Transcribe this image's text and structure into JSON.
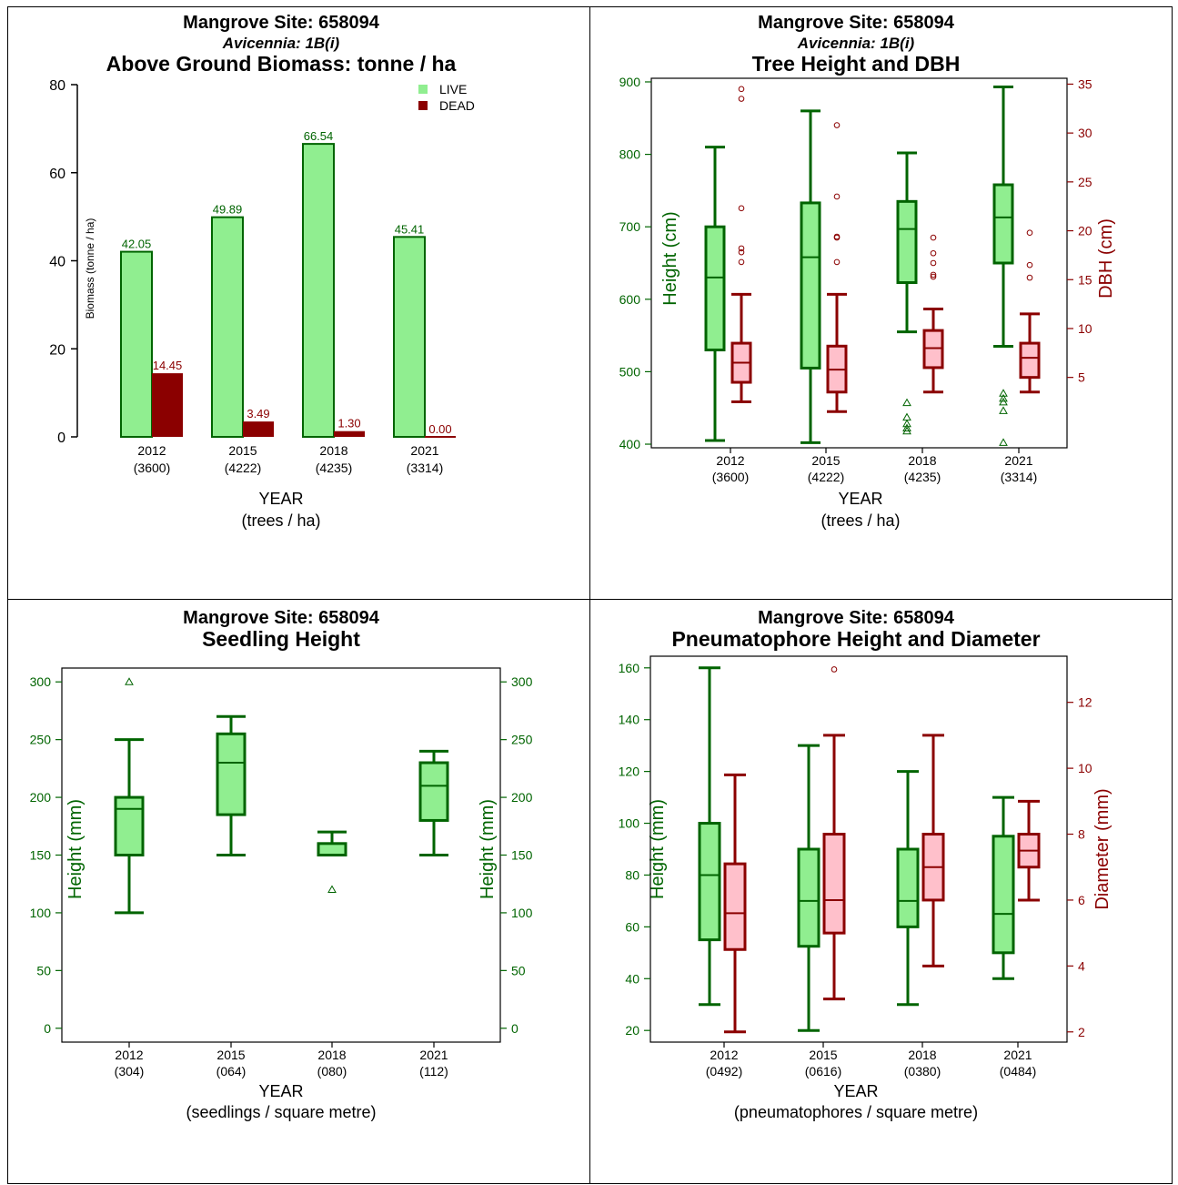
{
  "colors": {
    "live_fill": "#90EE90",
    "live_stroke": "#006400",
    "dead_fill": "#8B0000",
    "dbh_fill": "#FFC0CB",
    "dbh_stroke": "#8B0000",
    "text_green": "#006400",
    "text_red": "#8B0000"
  },
  "panels": {
    "biomass": {
      "title": "Mangrove Site: 658094",
      "subtitle": "Avicennia: 1B(i)",
      "heading": "Above Ground Biomass: tonne / ha",
      "ylabel": "Biomass (tonne / ha)",
      "xlabel": "YEAR",
      "xlabel2": "(trees / ha)",
      "legend": {
        "live": "LIVE",
        "dead": "DEAD"
      }
    },
    "tree": {
      "title": "Mangrove Site: 658094",
      "subtitle": "Avicennia: 1B(i)",
      "heading": "Tree Height and DBH",
      "ylabel_left": "Height (cm)",
      "ylabel_right": "DBH (cm)",
      "xlabel": "YEAR",
      "xlabel2": "(trees / ha)"
    },
    "seedling": {
      "title": "Mangrove Site: 658094",
      "heading": "Seedling Height",
      "ylabel_left": "Height (mm)",
      "ylabel_right": "Height (mm)",
      "xlabel": "YEAR",
      "xlabel2": "(seedlings / square metre)"
    },
    "pneu": {
      "title": "Mangrove Site: 658094",
      "heading": "Pneumatophore Height and Diameter",
      "ylabel_left": "Height (mm)",
      "ylabel_right": "Diameter (mm)",
      "xlabel": "YEAR",
      "xlabel2": "(pneumatophores / square metre)"
    }
  },
  "chart_data": [
    {
      "type": "bar",
      "id": "biomass",
      "categories": [
        "2012",
        "2015",
        "2018",
        "2021"
      ],
      "category_sublabels": [
        "(3600)",
        "(4222)",
        "(4235)",
        "(3314)"
      ],
      "series": [
        {
          "name": "LIVE",
          "values": [
            42.05,
            49.89,
            66.54,
            45.41
          ],
          "labels": [
            "42.05",
            "49.89",
            "66.54",
            "45.41"
          ]
        },
        {
          "name": "DEAD",
          "values": [
            14.45,
            3.49,
            1.3,
            0.0
          ],
          "labels": [
            "14.45",
            "3.49",
            "1.30",
            "0.00"
          ]
        }
      ],
      "ylim": [
        0,
        80
      ],
      "yticks": [
        0,
        20,
        40,
        60,
        80
      ],
      "legend": "top-right"
    },
    {
      "type": "box",
      "id": "tree",
      "categories": [
        "2012",
        "2015",
        "2018",
        "2021"
      ],
      "category_sublabels": [
        "(3600)",
        "(4222)",
        "(4235)",
        "(3314)"
      ],
      "left_axis": {
        "ylim": [
          395,
          905
        ],
        "yticks": [
          400,
          500,
          600,
          700,
          800,
          900
        ]
      },
      "right_axis": {
        "ylim": [
          -2.2,
          35.6
        ],
        "yticks": [
          5,
          10,
          15,
          20,
          25,
          30,
          35
        ]
      },
      "series": [
        {
          "name": "Height (cm)",
          "axis": "left",
          "outlier_marker": "triangle",
          "boxes": [
            {
              "whislo": 405,
              "q1": 530,
              "med": 630,
              "q3": 700,
              "whishi": 810,
              "outliers": []
            },
            {
              "whislo": 402,
              "q1": 505,
              "med": 658,
              "q3": 733,
              "whishi": 860,
              "outliers": []
            },
            {
              "whislo": 555,
              "q1": 623,
              "med": 697,
              "q3": 735,
              "whishi": 802,
              "outliers": [
                457,
                437,
                428,
                422,
                418
              ]
            },
            {
              "whislo": 535,
              "q1": 650,
              "med": 713,
              "q3": 758,
              "whishi": 893,
              "outliers": [
                470,
                463,
                458,
                446,
                402
              ]
            }
          ]
        },
        {
          "name": "DBH (cm)",
          "axis": "right",
          "outlier_marker": "circle",
          "boxes": [
            {
              "whislo": 2.5,
              "q1": 4.5,
              "med": 6.5,
              "q3": 8.5,
              "whishi": 13.5,
              "outliers": [
                16.8,
                17.8,
                18.2,
                22.3,
                33.5,
                34.5
              ]
            },
            {
              "whislo": 1.5,
              "q1": 3.5,
              "med": 5.8,
              "q3": 8.2,
              "whishi": 13.5,
              "outliers": [
                16.8,
                19.3,
                19.4,
                23.5,
                30.8
              ]
            },
            {
              "whislo": 3.5,
              "q1": 6.0,
              "med": 8.0,
              "q3": 9.8,
              "whishi": 12.0,
              "outliers": [
                15.3,
                15.5,
                16.7,
                17.7,
                19.3
              ]
            },
            {
              "whislo": 3.5,
              "q1": 5.0,
              "med": 7.0,
              "q3": 8.5,
              "whishi": 11.5,
              "outliers": [
                15.2,
                16.5,
                19.8
              ]
            }
          ]
        }
      ]
    },
    {
      "type": "box",
      "id": "seedling",
      "categories": [
        "2012",
        "2015",
        "2018",
        "2021"
      ],
      "category_sublabels": [
        "(304)",
        "(064)",
        "(080)",
        "(112)"
      ],
      "left_axis": {
        "ylim": [
          -12,
          312
        ],
        "yticks": [
          0,
          50,
          100,
          150,
          200,
          250,
          300
        ]
      },
      "right_axis": {
        "ylim": [
          -12,
          312
        ],
        "yticks": [
          0,
          50,
          100,
          150,
          200,
          250,
          300
        ]
      },
      "series": [
        {
          "name": "Height (mm)",
          "axis": "left",
          "outlier_marker": "triangle",
          "boxes": [
            {
              "whislo": 100,
              "q1": 150,
              "med": 190,
              "q3": 200,
              "whishi": 250,
              "outliers": [
                300
              ]
            },
            {
              "whislo": 150,
              "q1": 185,
              "med": 230,
              "q3": 255,
              "whishi": 270,
              "outliers": []
            },
            {
              "whislo": 150,
              "q1": 150,
              "med": 160,
              "q3": 160,
              "whishi": 170,
              "outliers": [
                120
              ]
            },
            {
              "whislo": 150,
              "q1": 180,
              "med": 210,
              "q3": 230,
              "whishi": 240,
              "outliers": []
            }
          ]
        }
      ]
    },
    {
      "type": "box",
      "id": "pneu",
      "categories": [
        "2012",
        "2015",
        "2018",
        "2021"
      ],
      "category_sublabels": [
        "(0492)",
        "(0616)",
        "(0380)",
        "(0484)"
      ],
      "left_axis": {
        "ylim": [
          15.5,
          164.5
        ],
        "yticks": [
          20,
          40,
          60,
          80,
          100,
          120,
          140,
          160
        ]
      },
      "right_axis": {
        "ylim": [
          1.69,
          13.4
        ],
        "yticks": [
          2,
          4,
          6,
          8,
          10,
          12
        ]
      },
      "series": [
        {
          "name": "Height (mm)",
          "axis": "left",
          "outlier_marker": "triangle",
          "boxes": [
            {
              "whislo": 30,
              "q1": 55,
              "med": 80,
              "q3": 100,
              "whishi": 160,
              "outliers": []
            },
            {
              "whislo": 20,
              "q1": 52.5,
              "med": 70,
              "q3": 90,
              "whishi": 130,
              "outliers": []
            },
            {
              "whislo": 30,
              "q1": 60,
              "med": 70,
              "q3": 90,
              "whishi": 120,
              "outliers": []
            },
            {
              "whislo": 40,
              "q1": 50,
              "med": 65,
              "q3": 95,
              "whishi": 110,
              "outliers": []
            }
          ]
        },
        {
          "name": "Diameter (mm)",
          "axis": "right",
          "outlier_marker": "circle",
          "boxes": [
            {
              "whislo": 2,
              "q1": 4.5,
              "med": 5.6,
              "q3": 7.1,
              "whishi": 9.8,
              "outliers": []
            },
            {
              "whislo": 3,
              "q1": 5,
              "med": 6,
              "q3": 8,
              "whishi": 11,
              "outliers": [
                13
              ]
            },
            {
              "whislo": 4,
              "q1": 6,
              "med": 7,
              "q3": 8,
              "whishi": 11,
              "outliers": []
            },
            {
              "whislo": 6,
              "q1": 7,
              "med": 7.5,
              "q3": 8,
              "whishi": 9,
              "outliers": []
            }
          ]
        }
      ]
    }
  ]
}
